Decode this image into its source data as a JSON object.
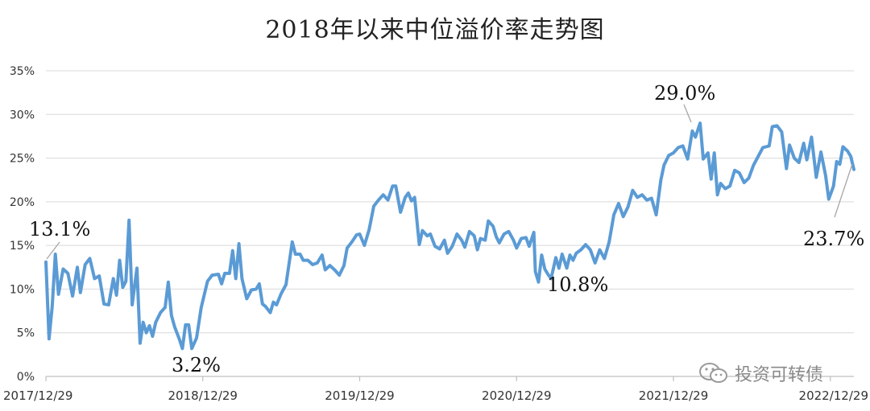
{
  "chart_data": {
    "type": "line",
    "title": "2018年以来中位溢价率走势图",
    "xlabel": "",
    "ylabel": "",
    "ylim": [
      0,
      35
    ],
    "y_ticks": [
      "0%",
      "5%",
      "10%",
      "15%",
      "20%",
      "25%",
      "30%",
      "35%"
    ],
    "x_ticks": [
      "2017/12/29",
      "2018/12/29",
      "2019/12/29",
      "2020/12/29",
      "2021/12/29",
      "2022/12/29"
    ],
    "grid": true,
    "legend": "none",
    "line_color": "#5b9bd5",
    "series": [
      {
        "values": [
          [
            2017.99,
            13.1
          ],
          [
            2018.01,
            4.3
          ],
          [
            2018.03,
            8.0
          ],
          [
            2018.05,
            14.0
          ],
          [
            2018.07,
            9.4
          ],
          [
            2018.1,
            12.3
          ],
          [
            2018.13,
            11.8
          ],
          [
            2018.16,
            9.2
          ],
          [
            2018.19,
            12.5
          ],
          [
            2018.21,
            9.6
          ],
          [
            2018.24,
            12.8
          ],
          [
            2018.27,
            13.5
          ],
          [
            2018.3,
            11.2
          ],
          [
            2018.33,
            11.5
          ],
          [
            2018.36,
            8.3
          ],
          [
            2018.39,
            8.2
          ],
          [
            2018.42,
            11.2
          ],
          [
            2018.44,
            9.3
          ],
          [
            2018.46,
            13.3
          ],
          [
            2018.48,
            10.2
          ],
          [
            2018.5,
            10.9
          ],
          [
            2018.52,
            17.9
          ],
          [
            2018.54,
            8.2
          ],
          [
            2018.57,
            12.4
          ],
          [
            2018.59,
            3.8
          ],
          [
            2018.61,
            6.2
          ],
          [
            2018.63,
            5.0
          ],
          [
            2018.65,
            5.8
          ],
          [
            2018.67,
            4.6
          ],
          [
            2018.69,
            6.2
          ],
          [
            2018.72,
            7.3
          ],
          [
            2018.75,
            7.9
          ],
          [
            2018.77,
            10.8
          ],
          [
            2018.79,
            7.0
          ],
          [
            2018.81,
            5.7
          ],
          [
            2018.84,
            4.3
          ],
          [
            2018.86,
            3.2
          ],
          [
            2018.88,
            5.9
          ],
          [
            2018.9,
            5.9
          ],
          [
            2018.92,
            3.2
          ],
          [
            2018.95,
            4.4
          ],
          [
            2018.98,
            7.9
          ],
          [
            2019.02,
            10.9
          ],
          [
            2019.05,
            11.6
          ],
          [
            2019.09,
            11.7
          ],
          [
            2019.11,
            10.6
          ],
          [
            2019.13,
            11.8
          ],
          [
            2019.16,
            11.8
          ],
          [
            2019.18,
            14.4
          ],
          [
            2019.2,
            11.2
          ],
          [
            2019.22,
            15.2
          ],
          [
            2019.24,
            11.2
          ],
          [
            2019.27,
            8.9
          ],
          [
            2019.3,
            9.9
          ],
          [
            2019.33,
            10.0
          ],
          [
            2019.35,
            10.6
          ],
          [
            2019.37,
            8.3
          ],
          [
            2019.39,
            8.0
          ],
          [
            2019.42,
            7.3
          ],
          [
            2019.44,
            8.5
          ],
          [
            2019.46,
            8.2
          ],
          [
            2019.49,
            9.5
          ],
          [
            2019.52,
            10.5
          ],
          [
            2019.56,
            15.4
          ],
          [
            2019.58,
            14.0
          ],
          [
            2019.61,
            14.0
          ],
          [
            2019.63,
            13.3
          ],
          [
            2019.66,
            13.3
          ],
          [
            2019.69,
            12.8
          ],
          [
            2019.72,
            13.0
          ],
          [
            2019.75,
            13.9
          ],
          [
            2019.77,
            12.2
          ],
          [
            2019.8,
            12.7
          ],
          [
            2019.83,
            12.2
          ],
          [
            2019.86,
            11.6
          ],
          [
            2019.89,
            12.7
          ],
          [
            2019.91,
            14.7
          ],
          [
            2019.94,
            15.4
          ],
          [
            2019.97,
            16.2
          ],
          [
            2019.99,
            16.3
          ],
          [
            2020.02,
            15.0
          ],
          [
            2020.05,
            16.8
          ],
          [
            2020.08,
            19.5
          ],
          [
            2020.11,
            20.2
          ],
          [
            2020.14,
            20.8
          ],
          [
            2020.17,
            20.2
          ],
          [
            2020.2,
            21.8
          ],
          [
            2020.22,
            21.8
          ],
          [
            2020.25,
            18.8
          ],
          [
            2020.28,
            20.5
          ],
          [
            2020.3,
            21.0
          ],
          [
            2020.32,
            20.1
          ],
          [
            2020.34,
            20.5
          ],
          [
            2020.37,
            15.1
          ],
          [
            2020.39,
            16.7
          ],
          [
            2020.42,
            16.1
          ],
          [
            2020.44,
            16.3
          ],
          [
            2020.47,
            14.9
          ],
          [
            2020.5,
            14.6
          ],
          [
            2020.53,
            15.6
          ],
          [
            2020.55,
            14.1
          ],
          [
            2020.58,
            14.9
          ],
          [
            2020.61,
            16.3
          ],
          [
            2020.64,
            15.6
          ],
          [
            2020.66,
            14.8
          ],
          [
            2020.69,
            16.6
          ],
          [
            2020.72,
            16.1
          ],
          [
            2020.74,
            14.5
          ],
          [
            2020.76,
            15.8
          ],
          [
            2020.79,
            15.6
          ],
          [
            2020.81,
            17.8
          ],
          [
            2020.84,
            17.2
          ],
          [
            2020.86,
            16.0
          ],
          [
            2020.88,
            15.3
          ],
          [
            2020.91,
            16.3
          ],
          [
            2020.94,
            16.6
          ],
          [
            2020.97,
            15.6
          ],
          [
            2020.99,
            14.7
          ],
          [
            2021.02,
            15.8
          ],
          [
            2021.05,
            15.9
          ],
          [
            2021.07,
            14.9
          ],
          [
            2021.1,
            16.5
          ],
          [
            2021.11,
            12.0
          ],
          [
            2021.13,
            10.8
          ],
          [
            2021.15,
            13.9
          ],
          [
            2021.17,
            12.3
          ],
          [
            2021.19,
            11.7
          ],
          [
            2021.21,
            11.2
          ],
          [
            2021.24,
            13.6
          ],
          [
            2021.26,
            12.4
          ],
          [
            2021.28,
            14.0
          ],
          [
            2021.31,
            12.4
          ],
          [
            2021.33,
            13.9
          ],
          [
            2021.35,
            13.3
          ],
          [
            2021.37,
            14.1
          ],
          [
            2021.4,
            14.5
          ],
          [
            2021.43,
            15.1
          ],
          [
            2021.46,
            14.5
          ],
          [
            2021.49,
            13.0
          ],
          [
            2021.52,
            14.5
          ],
          [
            2021.55,
            13.5
          ],
          [
            2021.58,
            15.4
          ],
          [
            2021.61,
            18.5
          ],
          [
            2021.64,
            19.8
          ],
          [
            2021.67,
            18.3
          ],
          [
            2021.7,
            19.4
          ],
          [
            2021.73,
            21.3
          ],
          [
            2021.76,
            20.5
          ],
          [
            2021.79,
            20.8
          ],
          [
            2021.82,
            20.2
          ],
          [
            2021.85,
            20.4
          ],
          [
            2021.88,
            18.5
          ],
          [
            2021.91,
            22.5
          ],
          [
            2021.93,
            24.2
          ],
          [
            2021.96,
            25.3
          ],
          [
            2021.99,
            25.6
          ],
          [
            2022.02,
            26.2
          ],
          [
            2022.05,
            26.4
          ],
          [
            2022.08,
            24.9
          ],
          [
            2022.11,
            28.1
          ],
          [
            2022.13,
            27.4
          ],
          [
            2022.16,
            29.0
          ],
          [
            2022.18,
            24.9
          ],
          [
            2022.21,
            25.6
          ],
          [
            2022.23,
            22.6
          ],
          [
            2022.25,
            25.6
          ],
          [
            2022.27,
            20.8
          ],
          [
            2022.29,
            22.1
          ],
          [
            2022.32,
            21.5
          ],
          [
            2022.35,
            21.8
          ],
          [
            2022.38,
            23.6
          ],
          [
            2022.41,
            23.3
          ],
          [
            2022.44,
            22.2
          ],
          [
            2022.47,
            22.7
          ],
          [
            2022.5,
            24.2
          ],
          [
            2022.53,
            25.2
          ],
          [
            2022.56,
            26.2
          ],
          [
            2022.6,
            26.4
          ],
          [
            2022.62,
            28.6
          ],
          [
            2022.65,
            28.7
          ],
          [
            2022.68,
            28.0
          ],
          [
            2022.71,
            23.8
          ],
          [
            2022.73,
            26.5
          ],
          [
            2022.76,
            25.0
          ],
          [
            2022.79,
            24.5
          ],
          [
            2022.82,
            26.7
          ],
          [
            2022.84,
            24.8
          ],
          [
            2022.87,
            27.4
          ],
          [
            2022.9,
            22.8
          ],
          [
            2022.93,
            25.7
          ],
          [
            2022.96,
            23.0
          ],
          [
            2022.98,
            20.3
          ],
          [
            2023.01,
            21.8
          ],
          [
            2023.03,
            24.6
          ],
          [
            2023.05,
            24.3
          ],
          [
            2023.07,
            26.3
          ],
          [
            2023.1,
            25.8
          ],
          [
            2023.12,
            25.2
          ],
          [
            2023.14,
            23.7
          ]
        ]
      }
    ],
    "annotations": [
      "13.1%",
      "3.2%",
      "10.8%",
      "29.0%",
      "23.7%"
    ]
  },
  "watermark": {
    "text": "投资可转债",
    "icon": "wechat-icon"
  }
}
